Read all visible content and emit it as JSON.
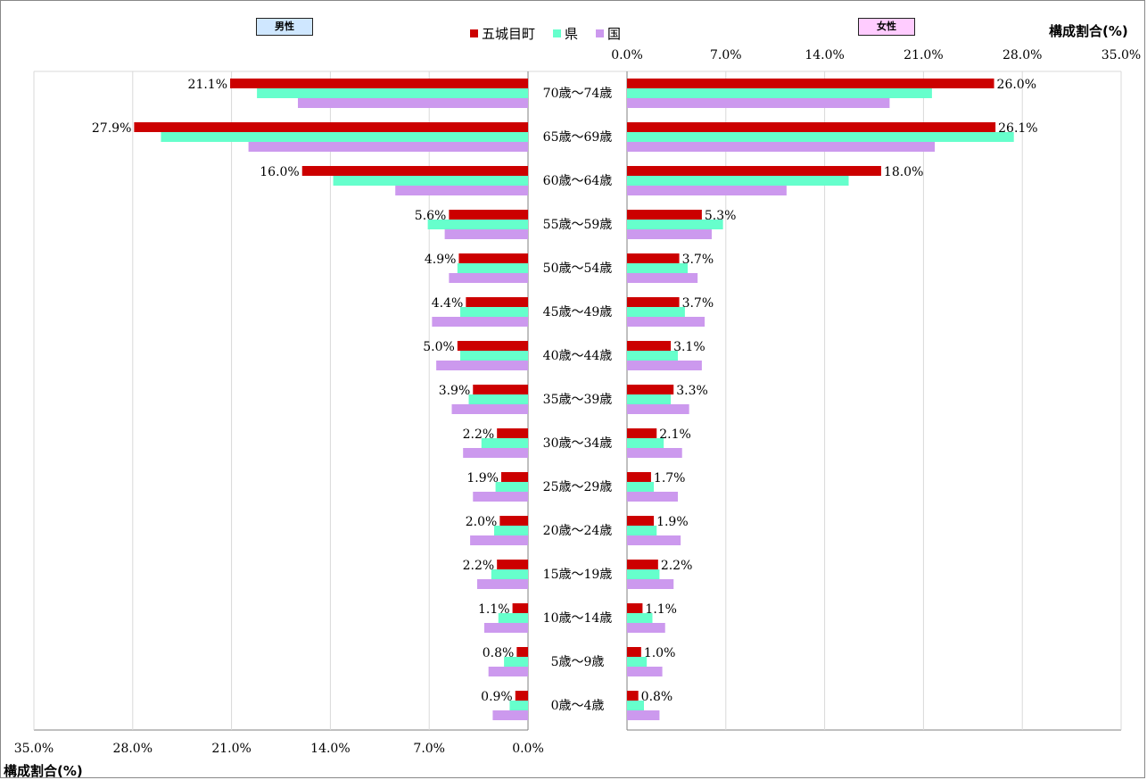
{
  "colors": {
    "town": "#cc0000",
    "prefecture": "#66ffcc",
    "nation": "#cc99ee"
  },
  "male_label": "男性",
  "female_label": "女性",
  "male_box_color": "#cfe7ff",
  "female_box_color": "#ffccff",
  "axis_title_top": "構成割合(%)",
  "axis_title_bottom": "構成割合(%)",
  "chart_data": {
    "type": "bar",
    "orientation": "horizontal-butterfly",
    "categories": [
      "70歳～74歳",
      "65歳～69歳",
      "60歳～64歳",
      "55歳～59歳",
      "50歳～54歳",
      "45歳～49歳",
      "40歳～44歳",
      "35歳～39歳",
      "30歳～34歳",
      "25歳～29歳",
      "20歳～24歳",
      "15歳～19歳",
      "10歳～14歳",
      "5歳～9歳",
      "0歳～4歳"
    ],
    "legend": [
      "五城目町",
      "県",
      "国"
    ],
    "male": {
      "series": [
        {
          "name": "五城目町",
          "values": [
            21.1,
            27.9,
            16.0,
            5.6,
            4.9,
            4.4,
            5.0,
            3.9,
            2.2,
            1.9,
            2.0,
            2.2,
            1.1,
            0.8,
            0.9
          ],
          "labels": [
            "21.1%",
            "27.9%",
            "16.0%",
            "5.6%",
            "4.9%",
            "4.4%",
            "5.0%",
            "3.9%",
            "2.2%",
            "1.9%",
            "2.0%",
            "2.2%",
            "1.1%",
            "0.8%",
            "0.9%"
          ]
        },
        {
          "name": "県",
          "values": [
            19.2,
            26.0,
            13.8,
            7.1,
            5.0,
            4.8,
            4.8,
            4.2,
            3.3,
            2.3,
            2.4,
            2.6,
            2.1,
            1.7,
            1.3
          ]
        },
        {
          "name": "国",
          "values": [
            16.3,
            19.8,
            9.4,
            5.9,
            5.6,
            6.8,
            6.5,
            5.4,
            4.6,
            3.9,
            4.1,
            3.6,
            3.1,
            2.8,
            2.5
          ]
        }
      ],
      "ticks": [
        "35.0%",
        "28.0%",
        "21.0%",
        "14.0%",
        "7.0%",
        "0.0%"
      ],
      "xlim": [
        0,
        35
      ]
    },
    "female": {
      "series": [
        {
          "name": "五城目町",
          "values": [
            26.0,
            26.1,
            18.0,
            5.3,
            3.7,
            3.7,
            3.1,
            3.3,
            2.1,
            1.7,
            1.9,
            2.2,
            1.1,
            1.0,
            0.8
          ],
          "labels": [
            "26.0%",
            "26.1%",
            "18.0%",
            "5.3%",
            "3.7%",
            "3.7%",
            "3.1%",
            "3.3%",
            "2.1%",
            "1.7%",
            "1.9%",
            "2.2%",
            "1.1%",
            "1.0%",
            "0.8%"
          ]
        },
        {
          "name": "県",
          "values": [
            21.6,
            27.4,
            15.7,
            6.8,
            4.3,
            4.1,
            3.6,
            3.1,
            2.6,
            1.9,
            2.1,
            2.3,
            1.8,
            1.4,
            1.2
          ]
        },
        {
          "name": "国",
          "values": [
            18.6,
            21.8,
            11.3,
            6.0,
            5.0,
            5.5,
            5.3,
            4.4,
            3.9,
            3.6,
            3.8,
            3.3,
            2.7,
            2.5,
            2.3
          ]
        }
      ],
      "ticks": [
        "0.0%",
        "7.0%",
        "14.0%",
        "21.0%",
        "28.0%",
        "35.0%"
      ],
      "xlim": [
        0,
        35
      ]
    }
  }
}
